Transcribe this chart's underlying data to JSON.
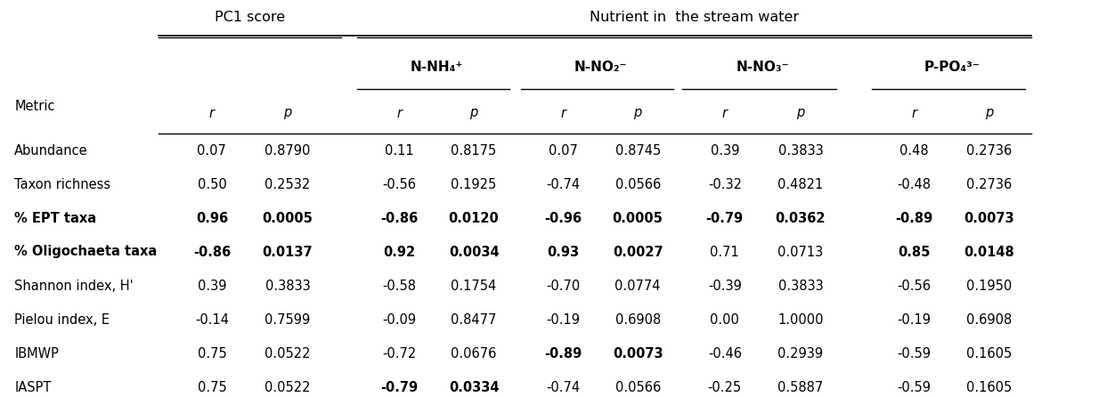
{
  "title_left": "PC1 score",
  "title_right": "Nutrient in  the stream water",
  "sub_headers": [
    "N-NH₄⁺",
    "N-NO₂⁻",
    "N-NO₃⁻",
    "P-PO₄³⁻"
  ],
  "metrics": [
    "Abundance",
    "Taxon richness",
    "% EPT taxa",
    "% Oligochaeta taxa",
    "Shannon index, H'",
    "Pielou index, E",
    "IBMWP",
    "IASPT"
  ],
  "data": [
    [
      "0.07",
      "0.8790",
      "0.11",
      "0.8175",
      "0.07",
      "0.8745",
      "0.39",
      "0.3833",
      "0.48",
      "0.2736"
    ],
    [
      "0.50",
      "0.2532",
      "-0.56",
      "0.1925",
      "-0.74",
      "0.0566",
      "-0.32",
      "0.4821",
      "-0.48",
      "0.2736"
    ],
    [
      "0.96",
      "0.0005",
      "-0.86",
      "0.0120",
      "-0.96",
      "0.0005",
      "-0.79",
      "0.0362",
      "-0.89",
      "0.0073"
    ],
    [
      "-0.86",
      "0.0137",
      "0.92",
      "0.0034",
      "0.93",
      "0.0027",
      "0.71",
      "0.0713",
      "0.85",
      "0.0148"
    ],
    [
      "0.39",
      "0.3833",
      "-0.58",
      "0.1754",
      "-0.70",
      "0.0774",
      "-0.39",
      "0.3833",
      "-0.56",
      "0.1950"
    ],
    [
      "-0.14",
      "0.7599",
      "-0.09",
      "0.8477",
      "-0.19",
      "0.6908",
      "0.00",
      "1.0000",
      "-0.19",
      "0.6908"
    ],
    [
      "0.75",
      "0.0522",
      "-0.72",
      "0.0676",
      "-0.89",
      "0.0073",
      "-0.46",
      "0.2939",
      "-0.59",
      "0.1605"
    ],
    [
      "0.75",
      "0.0522",
      "-0.79",
      "0.0334",
      "-0.74",
      "0.0566",
      "-0.25",
      "0.5887",
      "-0.59",
      "0.1605"
    ]
  ],
  "bold": [
    [
      false,
      false,
      false,
      false,
      false,
      false,
      false,
      false,
      false,
      false
    ],
    [
      false,
      false,
      false,
      false,
      false,
      false,
      false,
      false,
      false,
      false
    ],
    [
      true,
      true,
      true,
      true,
      true,
      true,
      true,
      true,
      true,
      true
    ],
    [
      true,
      true,
      true,
      true,
      true,
      true,
      false,
      false,
      true,
      true
    ],
    [
      false,
      false,
      false,
      false,
      false,
      false,
      false,
      false,
      false,
      false
    ],
    [
      false,
      false,
      false,
      false,
      false,
      false,
      false,
      false,
      false,
      false
    ],
    [
      false,
      false,
      false,
      false,
      true,
      true,
      false,
      false,
      false,
      false
    ],
    [
      false,
      false,
      true,
      true,
      false,
      false,
      false,
      false,
      false,
      false
    ]
  ],
  "metric_bold": [
    false,
    false,
    true,
    true,
    false,
    false,
    false,
    false
  ],
  "figsize": [
    12.52,
    4.46
  ],
  "dpi": 100
}
